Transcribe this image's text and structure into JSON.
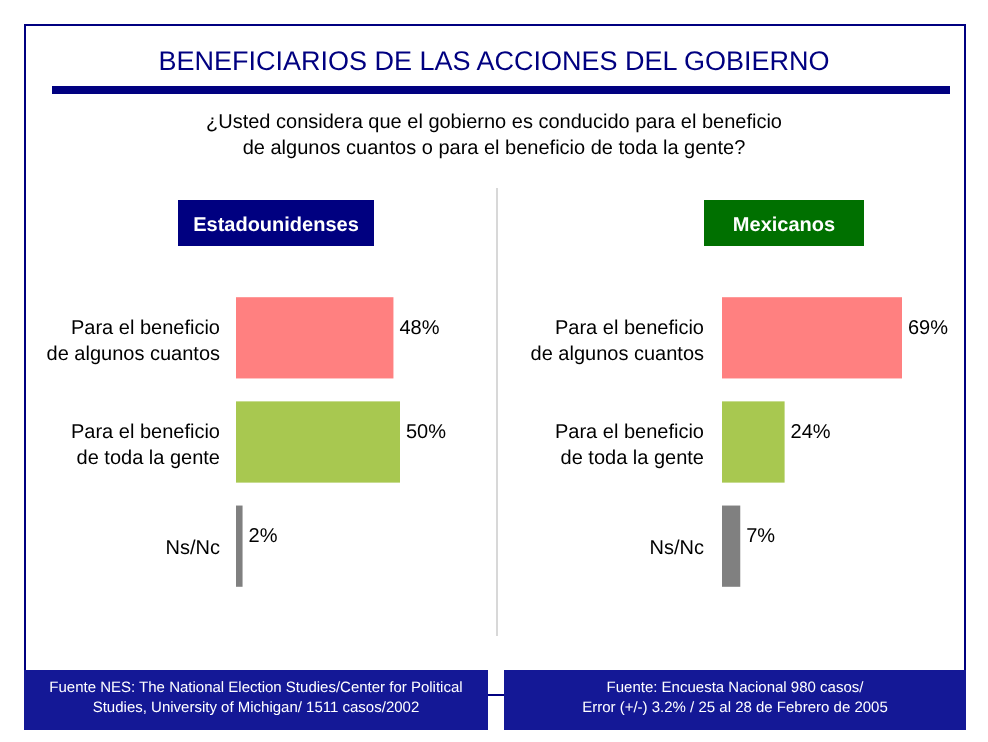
{
  "chart_data": [
    {
      "type": "other",
      "title": "BENEFICIARIOS DE LAS ACCIONES DEL GOBIERNO",
      "subtitle": "¿Usted considera que el gobierno es conducido para el beneficio\nde algunos cuantos o para el beneficio de toda la gente?"
    },
    {
      "type": "bar",
      "orientation": "horizontal",
      "title": "Estadounidenses",
      "categories": [
        "Para el beneficio\nde algunos cuantos",
        "Para el beneficio\nde toda la gente",
        "Ns/Nc"
      ],
      "values": [
        48,
        50,
        2
      ],
      "value_labels": [
        "48%",
        "50%",
        "2%"
      ],
      "colors": [
        "#ff8080",
        "#a8c850",
        "#808080"
      ],
      "annotations": [
        "Fuente NES: The National Election Studies/Center for Political\nStudies, University of Michigan/ 1511 casos/2002"
      ]
    },
    {
      "type": "bar",
      "orientation": "horizontal",
      "title": "Mexicanos",
      "categories": [
        "Para el beneficio\nde algunos cuantos",
        "Para el beneficio\nde toda la gente",
        "Ns/Nc"
      ],
      "values": [
        69,
        24,
        7
      ],
      "value_labels": [
        "69%",
        "24%",
        "7%"
      ],
      "colors": [
        "#ff8080",
        "#a8c850",
        "#808080"
      ],
      "annotations": [
        "Fuente: Encuesta Nacional 980 casos/\nError (+/-) 3.2% / 25 al 28 de Febrero de 2005"
      ]
    }
  ]
}
